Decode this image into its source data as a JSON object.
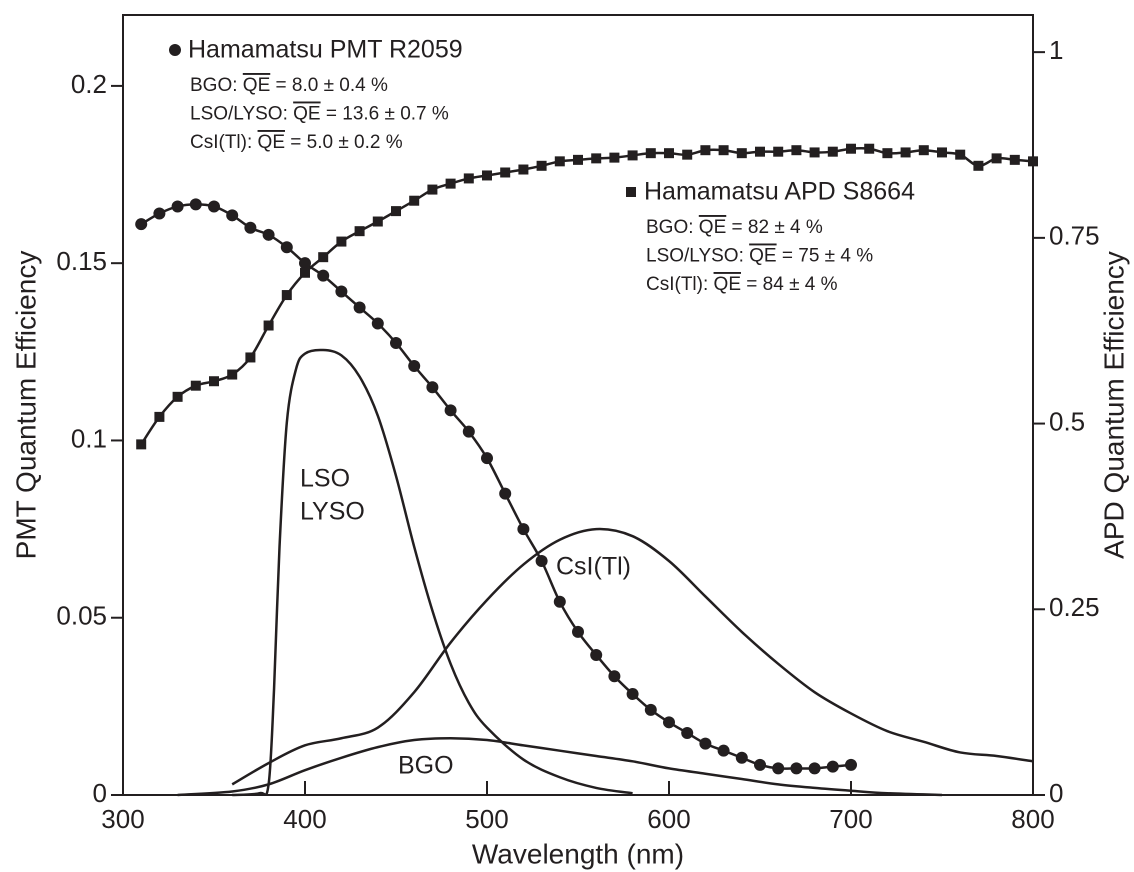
{
  "chart_data": {
    "type": "line",
    "xlabel": "Wavelength (nm)",
    "ylabel": "PMT Quantum Efficiency",
    "y2label": "APD Quantum Efficiency",
    "xlim": [
      300,
      800
    ],
    "xticks": [
      300,
      400,
      500,
      600,
      700,
      800
    ],
    "ylim": [
      0,
      0.22
    ],
    "yticks": [
      0,
      0.05,
      0.1,
      0.15,
      0.2
    ],
    "y2lim": [
      0,
      1.05
    ],
    "y2ticks": [
      0,
      0.25,
      0.5,
      0.75,
      1
    ],
    "series": [
      {
        "name": "Hamamatsu PMT R2059",
        "marker": "circle",
        "color": "#231f20",
        "x": [
          310,
          320,
          330,
          340,
          350,
          360,
          370,
          380,
          390,
          400,
          410,
          420,
          430,
          440,
          450,
          460,
          470,
          480,
          490,
          500,
          510,
          520,
          530,
          540,
          550,
          560,
          570,
          580,
          590,
          600,
          610,
          620,
          630,
          640,
          650,
          660,
          670,
          680,
          690,
          700
        ],
        "values": [
          0.161,
          0.164,
          0.166,
          0.1666,
          0.166,
          0.1635,
          0.16,
          0.158,
          0.1545,
          0.15,
          0.1465,
          0.142,
          0.1375,
          0.133,
          0.1275,
          0.121,
          0.115,
          0.1085,
          0.1025,
          0.095,
          0.085,
          0.075,
          0.066,
          0.0545,
          0.046,
          0.0395,
          0.0335,
          0.0285,
          0.024,
          0.0205,
          0.0175,
          0.0145,
          0.0125,
          0.0105,
          0.0085,
          0.0075,
          0.0075,
          0.0075,
          0.008,
          0.0085
        ],
        "notes": [
          {
            "label": "BGO:",
            "quantity": "QE",
            "value": "= 8.0 ± 0.4 %"
          },
          {
            "label": "LSO/LYSO:",
            "quantity": "QE",
            "value": "= 13.6 ± 0.7 %"
          },
          {
            "label": "CsI(Tl):",
            "quantity": "QE",
            "value": "= 5.0 ± 0.2 %"
          }
        ]
      },
      {
        "name": "Hamamatsu APD S8664",
        "marker": "square",
        "axis": "y2",
        "color": "#231f20",
        "x": [
          310,
          320,
          330,
          340,
          350,
          360,
          370,
          380,
          390,
          400,
          410,
          420,
          430,
          440,
          450,
          460,
          470,
          480,
          490,
          500,
          510,
          520,
          530,
          540,
          550,
          560,
          570,
          580,
          590,
          600,
          610,
          620,
          630,
          640,
          650,
          660,
          670,
          680,
          690,
          700,
          710,
          720,
          730,
          740,
          750,
          760,
          770,
          780,
          790,
          800
        ],
        "values": [
          0.472,
          0.509,
          0.536,
          0.551,
          0.557,
          0.566,
          0.589,
          0.632,
          0.673,
          0.703,
          0.724,
          0.745,
          0.759,
          0.772,
          0.786,
          0.8,
          0.815,
          0.823,
          0.83,
          0.834,
          0.838,
          0.842,
          0.847,
          0.853,
          0.855,
          0.857,
          0.858,
          0.861,
          0.864,
          0.864,
          0.862,
          0.868,
          0.868,
          0.864,
          0.866,
          0.866,
          0.868,
          0.865,
          0.866,
          0.87,
          0.87,
          0.864,
          0.865,
          0.868,
          0.865,
          0.862,
          0.847,
          0.857,
          0.855,
          0.853
        ],
        "notes": [
          {
            "label": "BGO:",
            "quantity": "QE",
            "value": "= 82 ± 4 %"
          },
          {
            "label": "LSO/LYSO:",
            "quantity": "QE",
            "value": "= 75 ± 4 %"
          },
          {
            "label": "CsI(Tl):",
            "quantity": "QE",
            "value": "= 84 ± 4 %"
          }
        ]
      },
      {
        "name_lines": [
          "LSO",
          "LYSO"
        ],
        "color": "#231f20",
        "x": [
          360,
          375,
          380,
          383,
          386,
          390,
          395,
          400,
          410,
          420,
          430,
          440,
          450,
          460,
          470,
          480,
          490,
          500,
          520,
          540,
          560,
          580
        ],
        "values": [
          0,
          0.0005,
          0.003,
          0.03,
          0.07,
          0.105,
          0.12,
          0.1245,
          0.1255,
          0.124,
          0.118,
          0.107,
          0.09,
          0.07,
          0.052,
          0.037,
          0.026,
          0.019,
          0.01,
          0.005,
          0.002,
          0.0005
        ]
      },
      {
        "name": "CsI(Tl)",
        "color": "#231f20",
        "x": [
          360,
          380,
          400,
          420,
          440,
          460,
          480,
          500,
          520,
          540,
          560,
          580,
          600,
          620,
          640,
          660,
          680,
          700,
          720,
          740,
          760,
          780,
          800
        ],
        "values": [
          0.003,
          0.009,
          0.014,
          0.016,
          0.019,
          0.029,
          0.043,
          0.055,
          0.065,
          0.072,
          0.075,
          0.073,
          0.066,
          0.056,
          0.046,
          0.037,
          0.029,
          0.023,
          0.018,
          0.015,
          0.012,
          0.011,
          0.0095
        ]
      },
      {
        "name": "BGO",
        "color": "#231f20",
        "x": [
          330,
          360,
          380,
          400,
          420,
          440,
          460,
          480,
          500,
          520,
          540,
          560,
          580,
          600,
          620,
          640,
          660,
          680,
          700,
          720,
          750
        ],
        "values": [
          0,
          0.001,
          0.003,
          0.007,
          0.0105,
          0.0135,
          0.0155,
          0.016,
          0.0155,
          0.014,
          0.0125,
          0.011,
          0.0095,
          0.0075,
          0.006,
          0.0045,
          0.003,
          0.002,
          0.0012,
          0.0005,
          0
        ]
      }
    ]
  }
}
